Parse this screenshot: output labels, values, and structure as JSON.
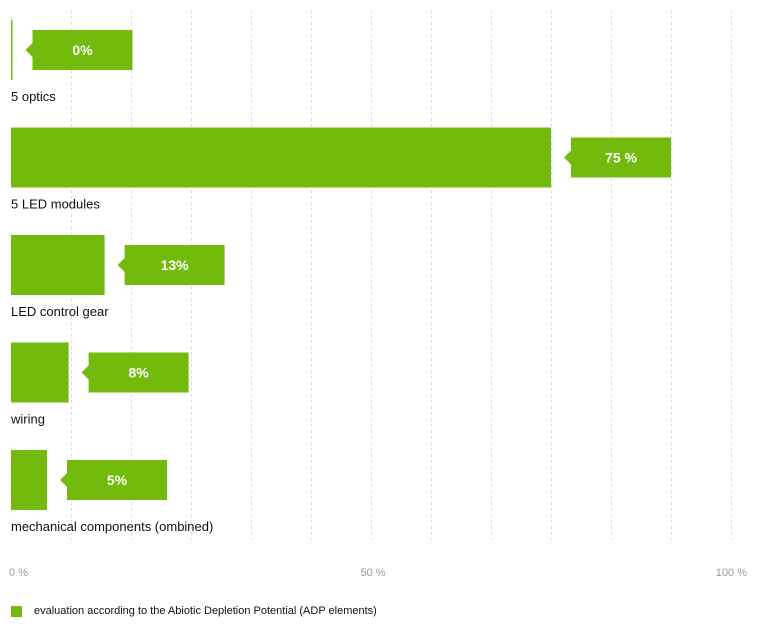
{
  "chart_data": {
    "type": "bar",
    "orientation": "horizontal",
    "categories": [
      "5 optics",
      "5 LED modules",
      "LED control gear",
      "wiring",
      "mechanical components (ombined)"
    ],
    "series": [
      {
        "name": "evaluation according to the Abiotic Depletion Potential (ADP elements)",
        "values": [
          0,
          75,
          13,
          8,
          5
        ]
      }
    ],
    "data_labels": [
      "0%",
      "75 %",
      "13%",
      "8%",
      "5%"
    ],
    "xlim": [
      0,
      100
    ],
    "x_ticks": [
      0,
      50,
      100
    ],
    "x_tick_labels": [
      "0 %",
      "50 %",
      "100 %"
    ],
    "grid": true,
    "legend_position": "bottom-left",
    "color": "#72BB0C",
    "title": "",
    "xlabel": "",
    "ylabel": ""
  }
}
